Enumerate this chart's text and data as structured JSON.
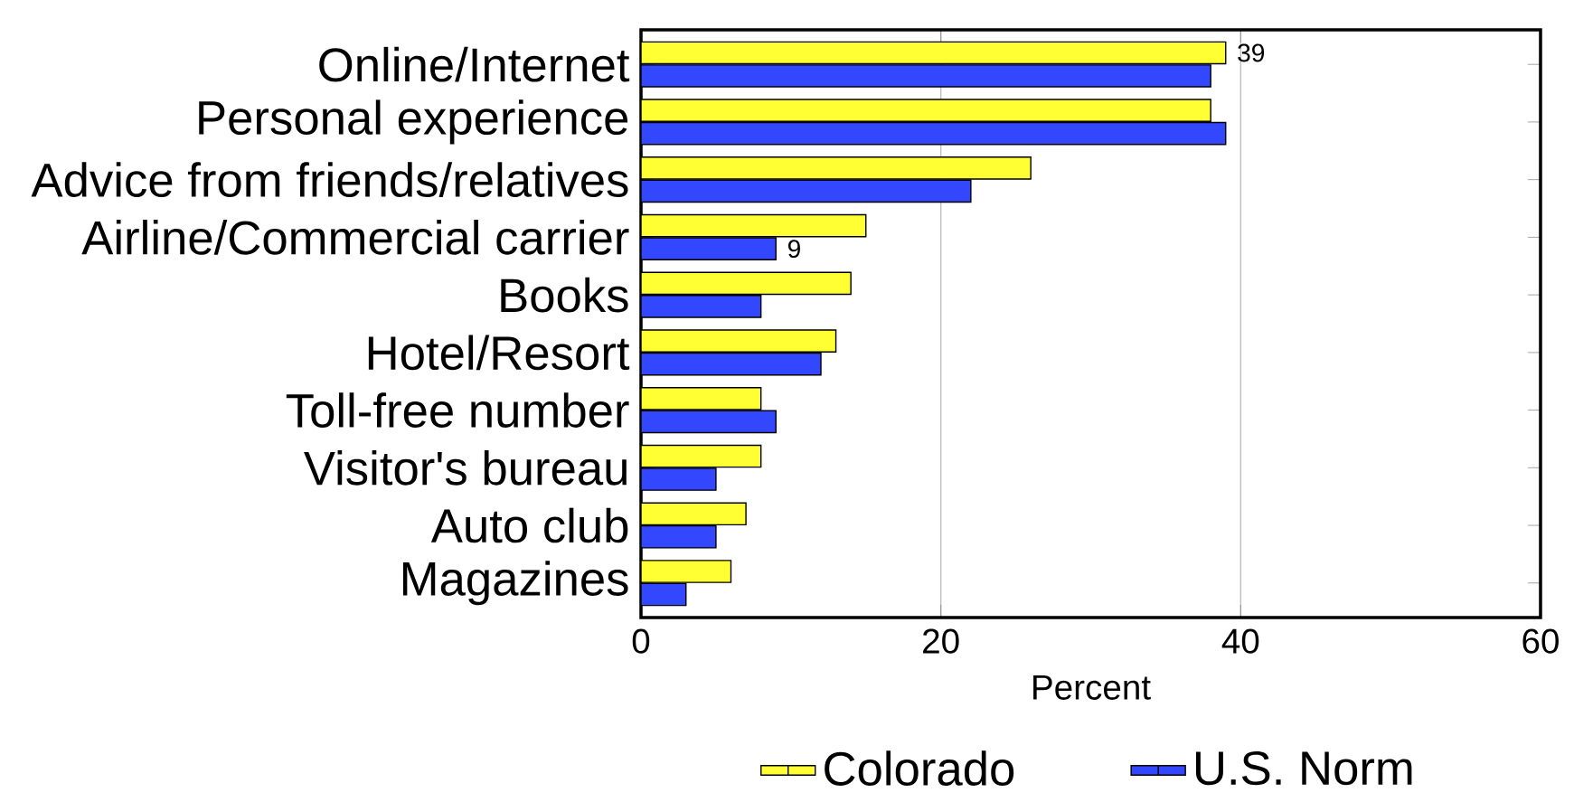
{
  "chart_data": {
    "type": "bar",
    "orientation": "horizontal",
    "xlabel": "Percent",
    "categories": [
      "Online/Internet",
      "Personal experience",
      "Advice from friends/relatives",
      "Airline/Commercial carrier",
      "Books",
      "Hotel/Resort",
      "Toll-free number",
      "Visitor's bureau",
      "Auto club",
      "Magazines"
    ],
    "series": [
      {
        "name": "Colorado",
        "color": "#ffff33",
        "values": [
          39,
          38,
          26,
          15,
          14,
          13,
          8,
          8,
          7,
          6
        ],
        "value_labels": [
          "39",
          null,
          null,
          null,
          null,
          null,
          null,
          null,
          null,
          null
        ]
      },
      {
        "name": "U.S. Norm",
        "color": "#3347ff",
        "values": [
          38,
          39,
          22,
          9,
          8,
          12,
          9,
          5,
          5,
          3
        ],
        "value_labels": [
          null,
          null,
          null,
          "9",
          null,
          null,
          null,
          null,
          null,
          null
        ]
      }
    ],
    "xlim": [
      0,
      60
    ],
    "xticks": [
      0,
      20,
      40,
      60
    ],
    "grid": "x",
    "legend": "bottom"
  }
}
